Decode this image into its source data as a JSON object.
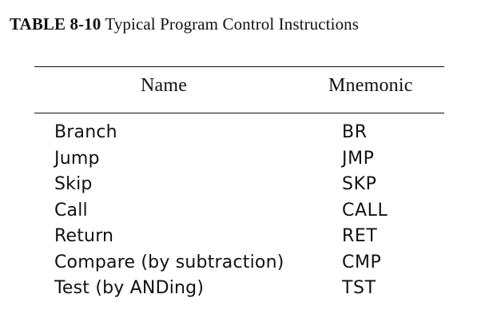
{
  "caption": {
    "number": "TABLE 8-10",
    "title": "Typical Program Control Instructions"
  },
  "table": {
    "headers": {
      "name": "Name",
      "mnemonic": "Mnemonic"
    },
    "rows": [
      {
        "name": "Branch",
        "mnemonic": "BR"
      },
      {
        "name": "Jump",
        "mnemonic": "JMP"
      },
      {
        "name": "Skip",
        "mnemonic": "SKP"
      },
      {
        "name": "Call",
        "mnemonic": "CALL"
      },
      {
        "name": "Return",
        "mnemonic": "RET"
      },
      {
        "name": "Compare (by subtraction)",
        "mnemonic": "CMP"
      },
      {
        "name": "Test (by ANDing)",
        "mnemonic": "TST"
      }
    ]
  }
}
